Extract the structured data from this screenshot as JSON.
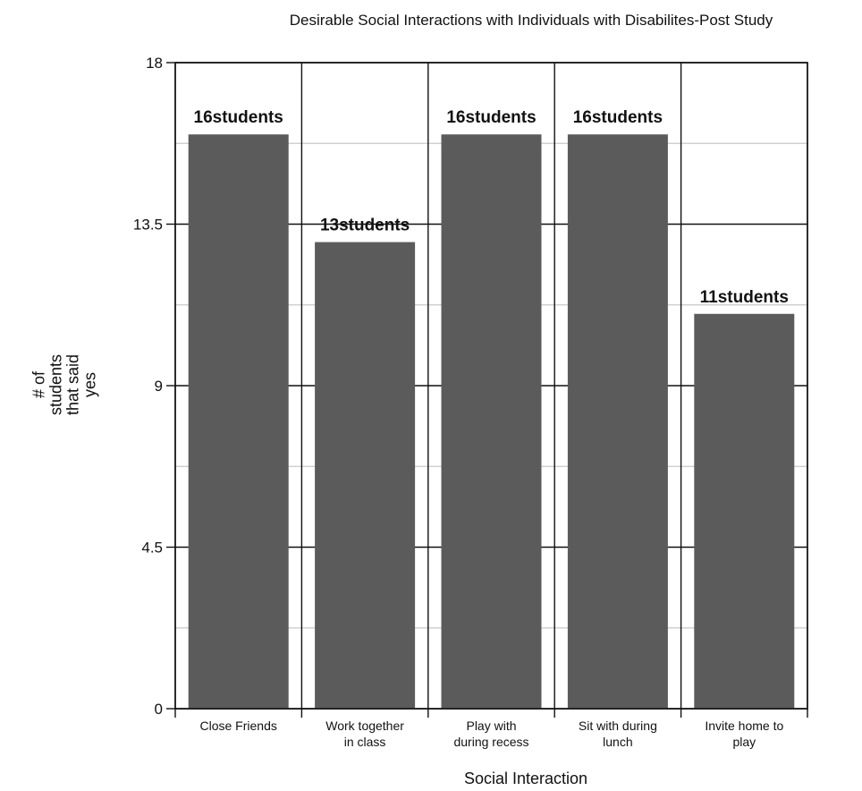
{
  "chart_data": {
    "type": "bar",
    "title": "Desirable Social Interactions with Individuals with Disabilites-Post Study",
    "xlabel": "Social Interaction",
    "ylabel_lines": [
      "# of",
      "students",
      "that said",
      "yes"
    ],
    "categories": [
      [
        "Close Friends"
      ],
      [
        "Work together",
        "in class"
      ],
      [
        "Play with",
        "during recess"
      ],
      [
        "Sit with during",
        "lunch"
      ],
      [
        "Invite home to",
        "play"
      ]
    ],
    "values": [
      16,
      13,
      16,
      16,
      11
    ],
    "data_labels": [
      "16students",
      "13students",
      "16students",
      "16students",
      "11students"
    ],
    "ylim": [
      0,
      18
    ],
    "yticks": [
      "0",
      "4.5",
      "9",
      "13.5",
      "18"
    ],
    "ytick_values": [
      0,
      4.5,
      9,
      13.5,
      18
    ],
    "minor_gridlines": [
      2.25,
      6.75,
      11.25,
      15.75
    ],
    "grid": true,
    "bar_color": "#5b5b5b",
    "grid_color": "#c8c8c8"
  }
}
